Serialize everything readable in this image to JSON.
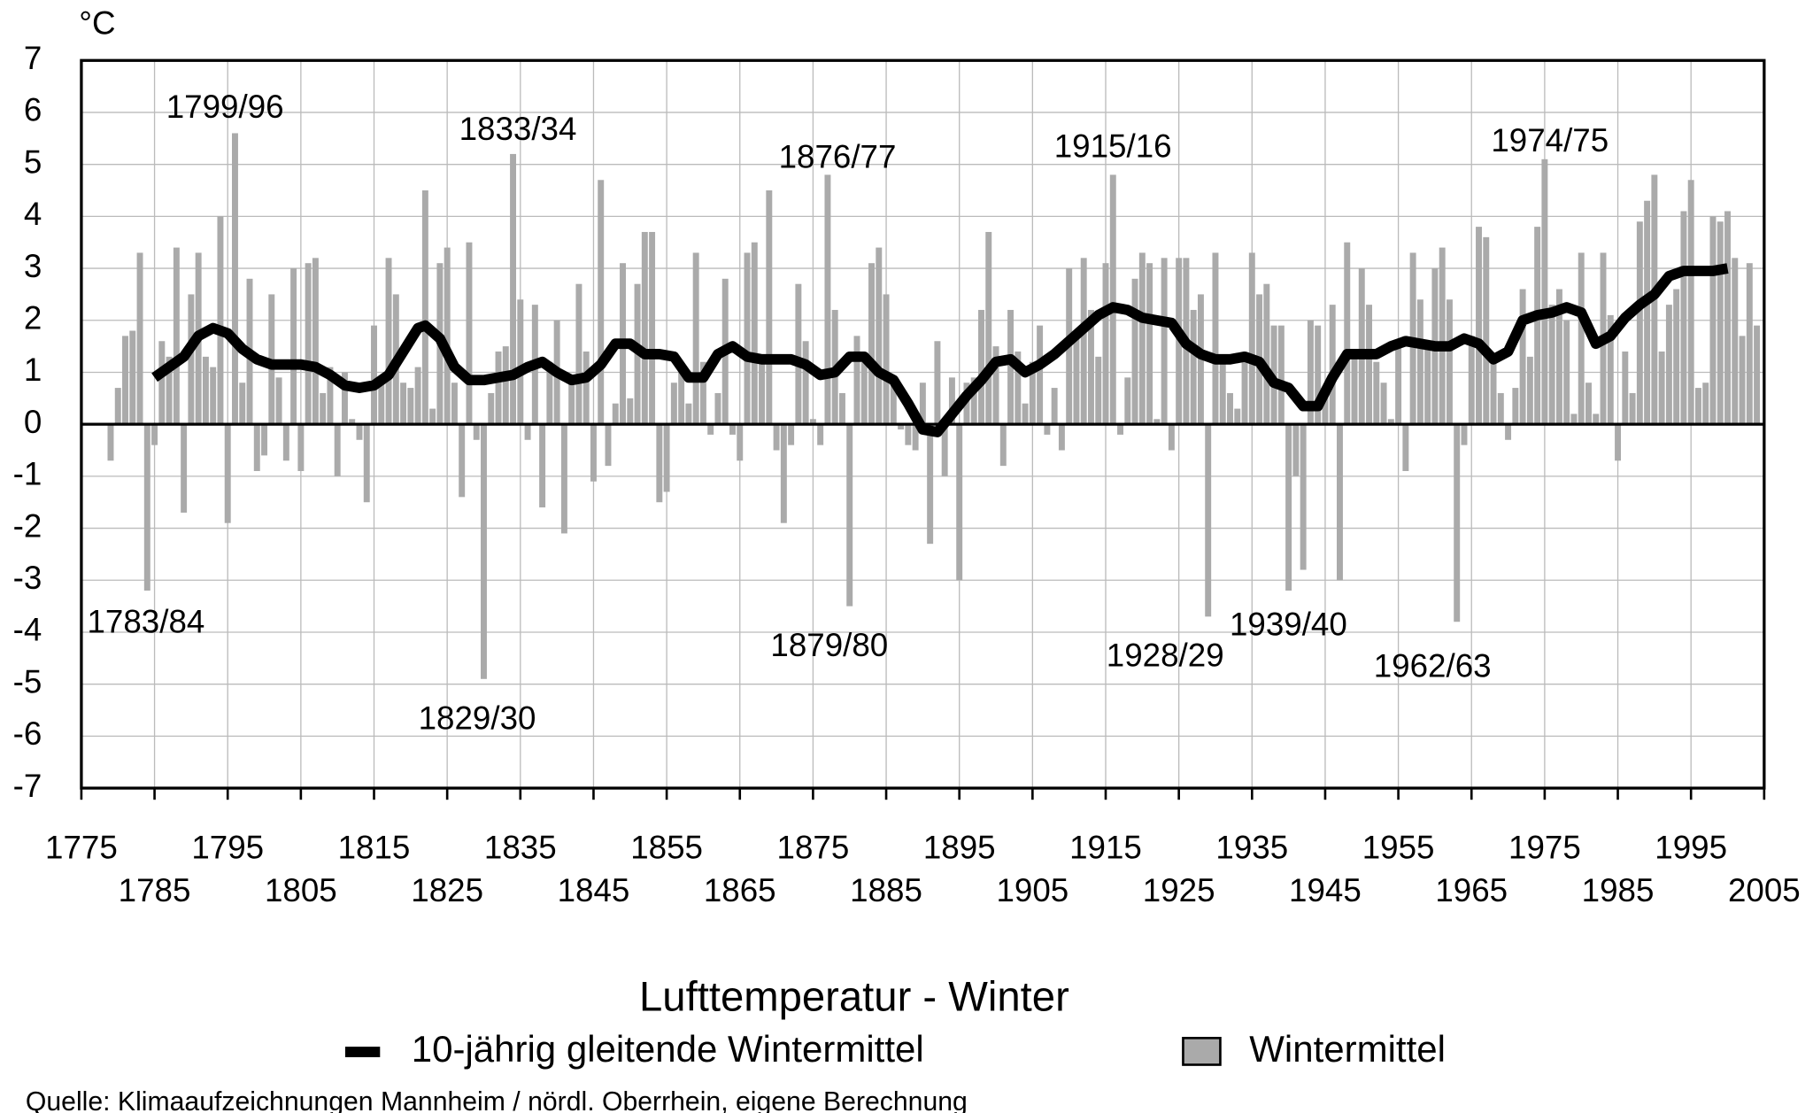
{
  "chart_data": {
    "type": "bar",
    "title": "Lufttemperatur - Winter",
    "y_unit": "°C",
    "source": "Quelle: Klimaaufzeichnungen Mannheim / nördl. Oberrhein, eigene Berechnung",
    "xlim": [
      1775,
      2005
    ],
    "xticks": [
      1775,
      1785,
      1795,
      1805,
      1815,
      1825,
      1835,
      1845,
      1855,
      1865,
      1875,
      1885,
      1895,
      1905,
      1915,
      1925,
      1935,
      1945,
      1955,
      1965,
      1975,
      1985,
      1995,
      2005
    ],
    "ylim": [
      -7,
      7
    ],
    "yticks": [
      -7,
      -6,
      -5,
      -4,
      -3,
      -2,
      -1,
      0,
      1,
      2,
      3,
      4,
      5,
      6,
      7
    ],
    "grid": true,
    "annotations": [
      "1783/84",
      "1799/96",
      "1829/30",
      "1833/34",
      "1876/77",
      "1879/80",
      "1915/16",
      "1928/29",
      "1939/40",
      "1962/63",
      "1974/75"
    ],
    "series": [
      {
        "name": "10-jährig gleitende Wintermittel",
        "type": "line",
        "color": "#000000",
        "x": [
          1785,
          1787,
          1789,
          1791,
          1793,
          1795,
          1797,
          1799,
          1801,
          1803,
          1805,
          1807,
          1809,
          1811,
          1813,
          1815,
          1817,
          1819,
          1821,
          1822,
          1824,
          1826,
          1828,
          1830,
          1832,
          1834,
          1836,
          1838,
          1840,
          1842,
          1844,
          1846,
          1848,
          1850,
          1852,
          1854,
          1856,
          1858,
          1860,
          1862,
          1864,
          1866,
          1868,
          1870,
          1872,
          1874,
          1876,
          1878,
          1880,
          1882,
          1884,
          1886,
          1888,
          1890,
          1892,
          1894,
          1896,
          1898,
          1900,
          1902,
          1904,
          1906,
          1908,
          1910,
          1912,
          1914,
          1916,
          1918,
          1920,
          1922,
          1924,
          1926,
          1928,
          1930,
          1932,
          1934,
          1936,
          1938,
          1940,
          1942,
          1944,
          1946,
          1948,
          1950,
          1952,
          1954,
          1956,
          1958,
          1960,
          1962,
          1964,
          1966,
          1968,
          1970,
          1972,
          1974,
          1976,
          1978,
          1980,
          1982,
          1984,
          1986,
          1988,
          1990,
          1992,
          1994,
          1996,
          1998,
          2000
        ],
        "values": [
          0.9,
          1.1,
          1.3,
          1.7,
          1.85,
          1.75,
          1.45,
          1.25,
          1.15,
          1.15,
          1.15,
          1.1,
          0.95,
          0.75,
          0.7,
          0.75,
          0.95,
          1.4,
          1.85,
          1.9,
          1.65,
          1.1,
          0.85,
          0.85,
          0.9,
          0.95,
          1.1,
          1.2,
          1.0,
          0.85,
          0.9,
          1.15,
          1.55,
          1.55,
          1.35,
          1.35,
          1.3,
          0.9,
          0.9,
          1.35,
          1.5,
          1.3,
          1.25,
          1.25,
          1.25,
          1.15,
          0.95,
          1.0,
          1.3,
          1.3,
          1.0,
          0.85,
          0.4,
          -0.1,
          -0.15,
          0.2,
          0.55,
          0.85,
          1.2,
          1.25,
          1.0,
          1.15,
          1.35,
          1.6,
          1.85,
          2.1,
          2.25,
          2.2,
          2.05,
          2.0,
          1.95,
          1.55,
          1.35,
          1.25,
          1.25,
          1.3,
          1.2,
          0.8,
          0.7,
          0.35,
          0.35,
          0.9,
          1.35,
          1.35,
          1.35,
          1.5,
          1.6,
          1.55,
          1.5,
          1.5,
          1.65,
          1.55,
          1.25,
          1.4,
          2.0,
          2.1,
          2.15,
          2.25,
          2.15,
          1.55,
          1.7,
          2.05,
          2.3,
          2.5,
          2.85,
          2.95,
          2.95,
          2.95,
          3.0
        ]
      },
      {
        "name": "Wintermittel",
        "type": "bar",
        "color": "#aaaaaa",
        "x": [
          1779,
          1780,
          1781,
          1782,
          1783,
          1784,
          1785,
          1786,
          1787,
          1788,
          1789,
          1790,
          1791,
          1792,
          1793,
          1794,
          1795,
          1796,
          1797,
          1798,
          1799,
          1800,
          1801,
          1802,
          1803,
          1804,
          1805,
          1806,
          1807,
          1808,
          1809,
          1810,
          1811,
          1812,
          1813,
          1814,
          1815,
          1816,
          1817,
          1818,
          1819,
          1820,
          1821,
          1822,
          1823,
          1824,
          1825,
          1826,
          1827,
          1828,
          1829,
          1830,
          1831,
          1832,
          1833,
          1834,
          1835,
          1836,
          1837,
          1838,
          1839,
          1840,
          1841,
          1842,
          1843,
          1844,
          1845,
          1846,
          1847,
          1848,
          1849,
          1850,
          1851,
          1852,
          1853,
          1854,
          1855,
          1856,
          1857,
          1858,
          1859,
          1860,
          1861,
          1862,
          1863,
          1864,
          1865,
          1866,
          1867,
          1868,
          1869,
          1870,
          1871,
          1872,
          1873,
          1874,
          1875,
          1876,
          1877,
          1878,
          1879,
          1880,
          1881,
          1882,
          1883,
          1884,
          1885,
          1886,
          1887,
          1888,
          1889,
          1890,
          1891,
          1892,
          1893,
          1894,
          1895,
          1896,
          1897,
          1898,
          1899,
          1900,
          1901,
          1902,
          1903,
          1904,
          1905,
          1906,
          1907,
          1908,
          1909,
          1910,
          1911,
          1912,
          1913,
          1914,
          1915,
          1916,
          1917,
          1918,
          1919,
          1920,
          1921,
          1922,
          1923,
          1924,
          1925,
          1926,
          1927,
          1928,
          1929,
          1930,
          1931,
          1932,
          1933,
          1934,
          1935,
          1936,
          1937,
          1938,
          1939,
          1940,
          1941,
          1942,
          1943,
          1944,
          1945,
          1946,
          1947,
          1948,
          1949,
          1950,
          1951,
          1952,
          1953,
          1954,
          1955,
          1956,
          1957,
          1958,
          1959,
          1960,
          1961,
          1962,
          1963,
          1964,
          1965,
          1966,
          1967,
          1968,
          1969,
          1970,
          1971,
          1972,
          1973,
          1974,
          1975,
          1976,
          1977,
          1978,
          1979,
          1980,
          1981,
          1982,
          1983,
          1984,
          1985,
          1986,
          1987,
          1988,
          1989,
          1990,
          1991,
          1992,
          1993,
          1994,
          1995,
          1996,
          1997,
          1998,
          1999,
          2000,
          2001,
          2002,
          2003,
          2004
        ],
        "values": [
          -0.7,
          0.7,
          1.7,
          1.8,
          3.3,
          -3.2,
          -0.4,
          1.6,
          1.3,
          3.4,
          -1.7,
          2.5,
          3.3,
          1.3,
          1.1,
          4.0,
          -1.9,
          5.6,
          0.8,
          2.8,
          -0.9,
          -0.6,
          2.5,
          0.9,
          -0.7,
          3.0,
          -0.9,
          3.1,
          3.2,
          0.6,
          1.1,
          -1.0,
          1.0,
          0.1,
          -0.3,
          -1.5,
          1.9,
          0.9,
          3.2,
          2.5,
          0.8,
          0.7,
          1.1,
          4.5,
          0.3,
          3.1,
          3.4,
          0.8,
          -1.4,
          3.5,
          -0.3,
          -4.9,
          0.6,
          1.4,
          1.5,
          5.2,
          2.4,
          -0.3,
          2.3,
          -1.6,
          1.2,
          2.0,
          -2.1,
          0.8,
          2.7,
          1.4,
          -1.1,
          4.7,
          -0.8,
          0.4,
          3.1,
          0.5,
          2.7,
          3.7,
          3.7,
          -1.5,
          -1.3,
          0.8,
          1.0,
          0.4,
          3.3,
          1.2,
          -0.2,
          0.6,
          2.8,
          -0.2,
          -0.7,
          3.3,
          3.5,
          1.2,
          4.5,
          -0.5,
          -1.9,
          -0.4,
          2.7,
          1.6,
          0.1,
          -0.4,
          4.8,
          2.2,
          0.6,
          -3.5,
          1.7,
          1.2,
          3.1,
          3.4,
          2.5,
          0.9,
          -0.1,
          -0.4,
          -0.5,
          0.8,
          -2.3,
          1.6,
          -1.0,
          0.9,
          -3.0,
          0.8,
          0.9,
          2.2,
          3.7,
          1.5,
          -0.8,
          2.2,
          1.4,
          0.4,
          1.2,
          1.9,
          -0.2,
          0.7,
          -0.5,
          3.0,
          1.7,
          3.2,
          2.2,
          1.3,
          3.1,
          4.8,
          -0.2,
          0.9,
          2.8,
          3.3,
          3.1,
          0.1,
          3.2,
          -0.5,
          3.2,
          3.2,
          2.2,
          2.5,
          -3.7,
          3.3,
          1.2,
          0.6,
          0.3,
          1.2,
          3.3,
          2.5,
          2.7,
          1.9,
          1.9,
          -3.2,
          -1.0,
          -2.8,
          2.0,
          1.9,
          0.6,
          2.3,
          -3.0,
          3.5,
          1.3,
          3.0,
          2.3,
          1.2,
          0.8,
          0.1,
          1.5,
          -0.9,
          3.3,
          2.4,
          1.5,
          3.0,
          3.4,
          2.4,
          -3.8,
          -0.4,
          1.7,
          3.8,
          3.6,
          1.2,
          0.6,
          -0.3,
          0.7,
          2.6,
          1.3,
          3.8,
          5.1,
          2.3,
          2.6,
          2.0,
          0.2,
          3.3,
          0.8,
          0.2,
          3.3,
          2.1,
          -0.7,
          1.4,
          0.6,
          3.9,
          4.3,
          4.8,
          1.4,
          2.3,
          2.6,
          4.1,
          4.7,
          0.7,
          0.8,
          4.0,
          3.9,
          4.1,
          3.2,
          1.7,
          3.1,
          1.9
        ]
      }
    ]
  }
}
